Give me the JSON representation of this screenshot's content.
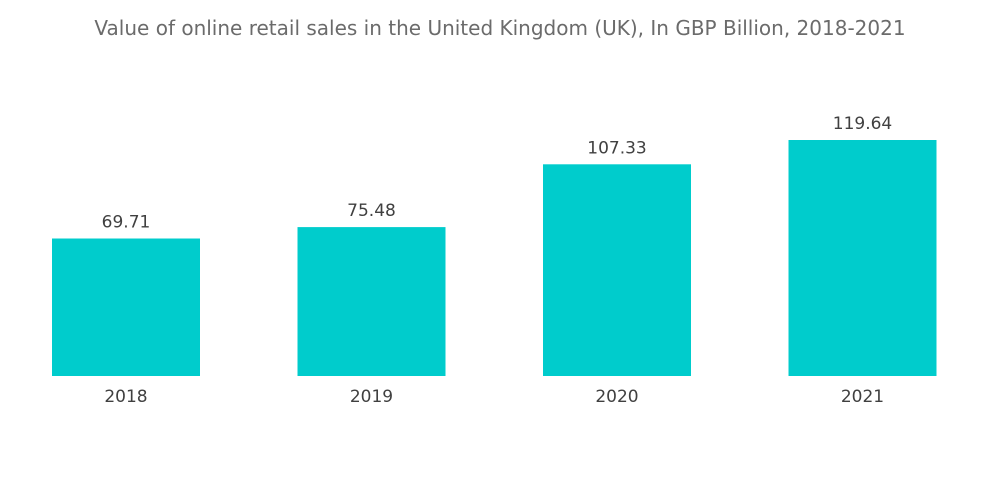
{
  "chart_data": {
    "type": "bar",
    "title": "Value of online retail sales in the United Kingdom (UK), In GBP Billion, 2018-2021",
    "categories": [
      "2018",
      "2019",
      "2020",
      "2021"
    ],
    "values": [
      69.71,
      75.48,
      107.33,
      119.64
    ],
    "value_labels": [
      "69.71",
      "75.48",
      "107.33",
      "119.64"
    ],
    "xlabel": "",
    "ylabel": "",
    "ylim": [
      0,
      119.64
    ],
    "grid": false,
    "legend": "none",
    "bar_color": "#00cccc"
  }
}
